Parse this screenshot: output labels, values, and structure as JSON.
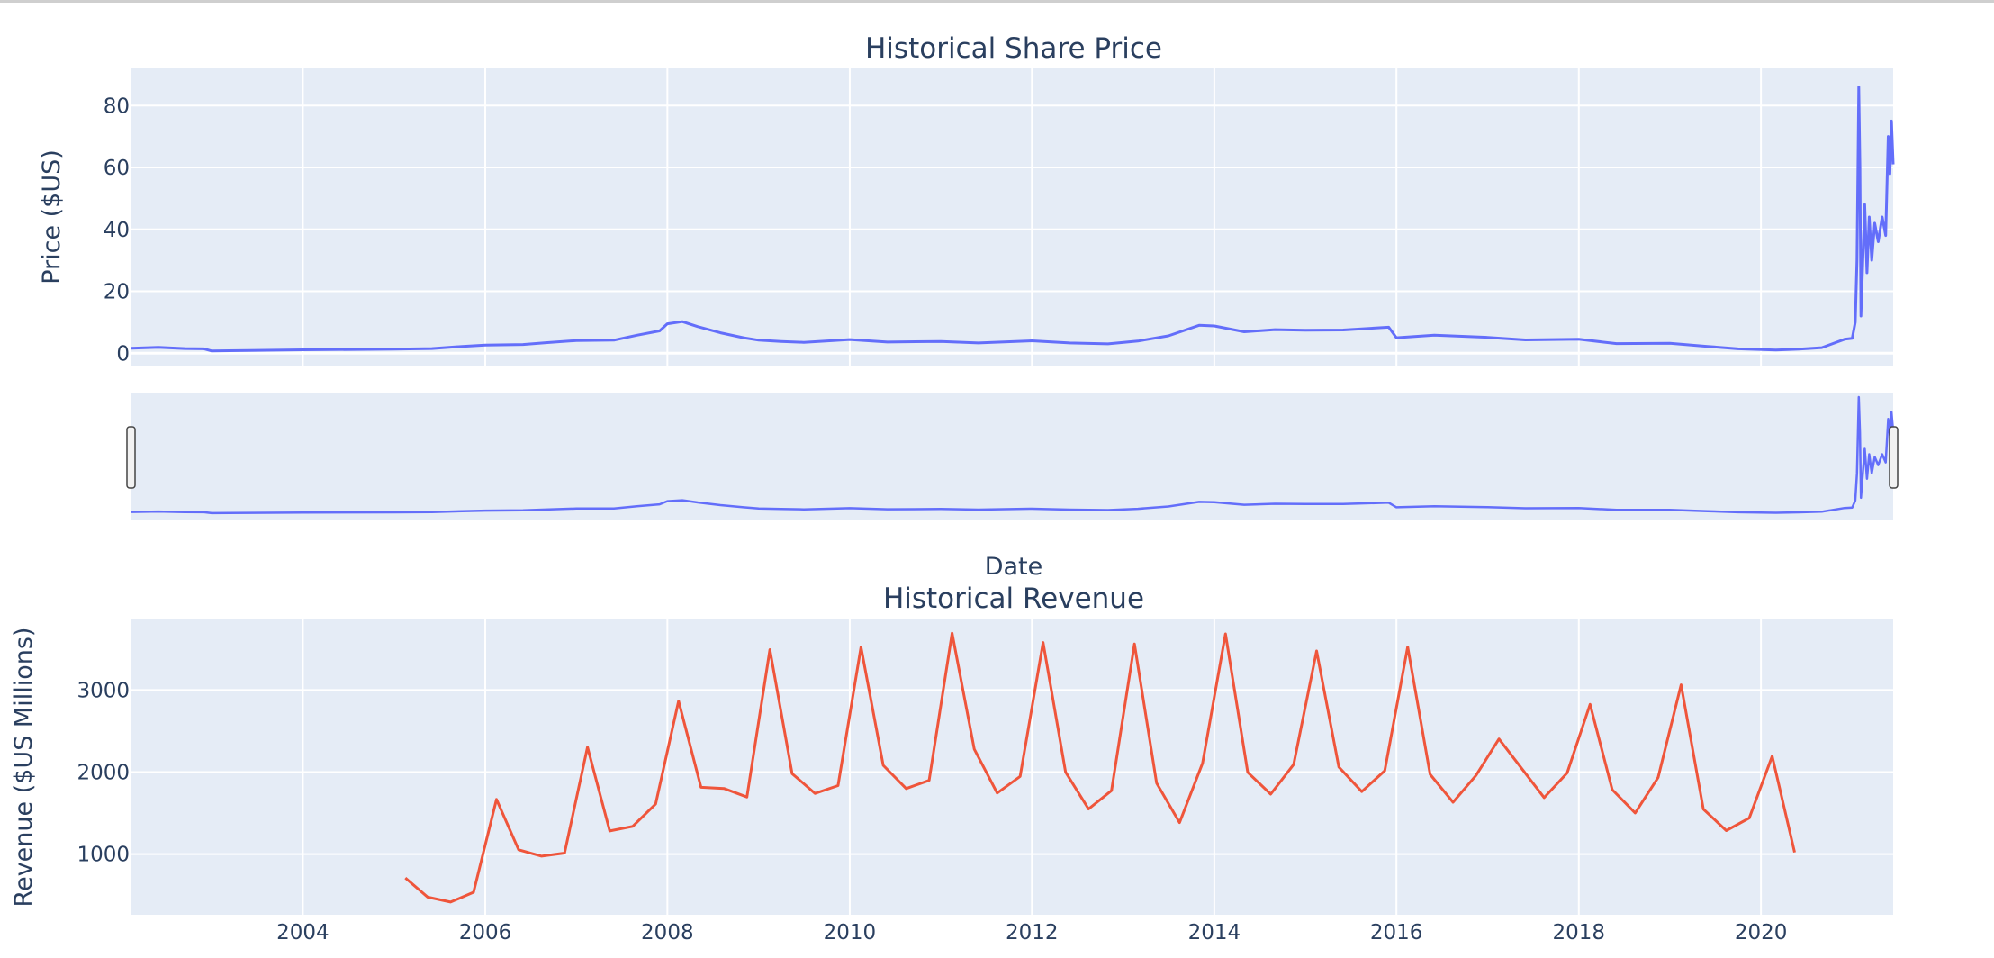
{
  "chart_data": [
    {
      "type": "line",
      "title": "Historical Share Price",
      "xlabel": "Date",
      "ylabel": "Price ($US)",
      "x_range": [
        "2002-02-13",
        "2021-06-14"
      ],
      "ylim": [
        -4,
        92
      ],
      "yticks": [
        0,
        20,
        40,
        60,
        80
      ],
      "grid": true,
      "line_color": "#636efa",
      "rangeslider": true,
      "series": [
        {
          "x": [
            "2002-02-13",
            "2002-06-01",
            "2002-09-15",
            "2002-12-01",
            "2003-01-01",
            "2003-06-01",
            "2004-01-01",
            "2005-01-01",
            "2005-06-01",
            "2005-10-01",
            "2006-01-01",
            "2006-06-01",
            "2006-09-01",
            "2007-01-01",
            "2007-06-01",
            "2007-09-01",
            "2007-12-01",
            "2008-01-01",
            "2008-03-01",
            "2008-05-01",
            "2008-08-01",
            "2008-11-01",
            "2009-01-01",
            "2009-04-01",
            "2009-07-01",
            "2010-01-01",
            "2010-06-01",
            "2011-01-01",
            "2011-06-01",
            "2012-01-01",
            "2012-06-01",
            "2012-11-01",
            "2013-03-01",
            "2013-07-01",
            "2013-11-01",
            "2014-01-01",
            "2014-05-01",
            "2014-09-01",
            "2015-01-01",
            "2015-06-01",
            "2015-12-01",
            "2016-01-01",
            "2016-06-01",
            "2017-01-01",
            "2017-06-01",
            "2018-01-01",
            "2018-06-01",
            "2019-01-01",
            "2019-06-01",
            "2019-10-01",
            "2020-03-01",
            "2020-06-01",
            "2020-09-01",
            "2020-12-01",
            "2021-01-01",
            "2021-01-13",
            "2021-01-20",
            "2021-01-27",
            "2021-02-01",
            "2021-02-05",
            "2021-02-20",
            "2021-03-01",
            "2021-03-10",
            "2021-03-20",
            "2021-04-01",
            "2021-04-15",
            "2021-05-01",
            "2021-05-15",
            "2021-05-25",
            "2021-06-01",
            "2021-06-07",
            "2021-06-14"
          ],
          "y": [
            1.6,
            1.9,
            1.5,
            1.4,
            0.7,
            0.9,
            1.1,
            1.3,
            1.5,
            2.2,
            2.6,
            2.8,
            3.4,
            4.1,
            4.2,
            5.8,
            7.2,
            9.5,
            10.2,
            8.6,
            6.6,
            5.0,
            4.2,
            3.8,
            3.5,
            4.4,
            3.6,
            3.8,
            3.3,
            4.0,
            3.3,
            3.0,
            3.9,
            5.6,
            9.0,
            8.8,
            6.9,
            7.6,
            7.4,
            7.5,
            8.4,
            5.0,
            5.8,
            5.1,
            4.3,
            4.5,
            3.1,
            3.2,
            2.2,
            1.4,
            1.0,
            1.3,
            1.8,
            4.5,
            4.8,
            10.0,
            30.0,
            86.0,
            60.0,
            12.0,
            48.0,
            26.0,
            44.0,
            30.0,
            42.0,
            36.0,
            44.0,
            38.0,
            70.0,
            58.0,
            75.0,
            61.0
          ]
        }
      ]
    },
    {
      "type": "line",
      "title": "Historical Revenue",
      "xlabel": "",
      "ylabel": "Revenue ($US Millions)",
      "x_range": [
        "2002-02-13",
        "2021-06-14"
      ],
      "xticks": [
        "2004",
        "2006",
        "2008",
        "2010",
        "2012",
        "2014",
        "2016",
        "2018",
        "2020"
      ],
      "ylim": [
        260,
        3860
      ],
      "yticks": [
        1000,
        2000,
        3000
      ],
      "grid": true,
      "line_color": "#ef553b",
      "series": [
        {
          "x": [
            "2005-02-15",
            "2005-05-15",
            "2005-08-15",
            "2005-11-15",
            "2006-02-15",
            "2006-05-15",
            "2006-08-15",
            "2006-11-15",
            "2007-02-15",
            "2007-05-15",
            "2007-08-15",
            "2007-11-15",
            "2008-02-15",
            "2008-05-15",
            "2008-08-15",
            "2008-11-15",
            "2009-02-15",
            "2009-05-15",
            "2009-08-15",
            "2009-11-15",
            "2010-02-15",
            "2010-05-15",
            "2010-08-15",
            "2010-11-15",
            "2011-02-15",
            "2011-05-15",
            "2011-08-15",
            "2011-11-15",
            "2012-02-15",
            "2012-05-15",
            "2012-08-15",
            "2012-11-15",
            "2013-02-15",
            "2013-05-15",
            "2013-08-15",
            "2013-11-15",
            "2014-02-15",
            "2014-05-15",
            "2014-08-15",
            "2014-11-15",
            "2015-02-15",
            "2015-05-15",
            "2015-08-15",
            "2015-11-15",
            "2016-02-15",
            "2016-05-15",
            "2016-08-15",
            "2016-11-15",
            "2017-02-15",
            "2017-08-15",
            "2017-11-15",
            "2018-02-15",
            "2018-05-15",
            "2018-08-15",
            "2018-11-15",
            "2019-02-15",
            "2019-05-15",
            "2019-08-15",
            "2019-11-15",
            "2020-02-15",
            "2020-05-15"
          ],
          "y": [
            709,
            475,
            415,
            534,
            1667,
            1052,
            975,
            1012,
            2304,
            1282,
            1338,
            1611,
            2866,
            1814,
            1800,
            1696,
            3492,
            1981,
            1739,
            1835,
            3524,
            2082,
            1799,
            1899,
            3693,
            2281,
            1744,
            1947,
            3579,
            1999,
            1550,
            1773,
            3562,
            1865,
            1384,
            2107,
            3684,
            1996,
            1731,
            2092,
            3476,
            2061,
            1762,
            2016,
            3525,
            1972,
            1632,
            1959,
            2403,
            1688,
            1989,
            2825,
            1786,
            1501,
            1935,
            3063,
            1548,
            1286,
            1439,
            2194,
            1021
          ]
        }
      ]
    }
  ]
}
